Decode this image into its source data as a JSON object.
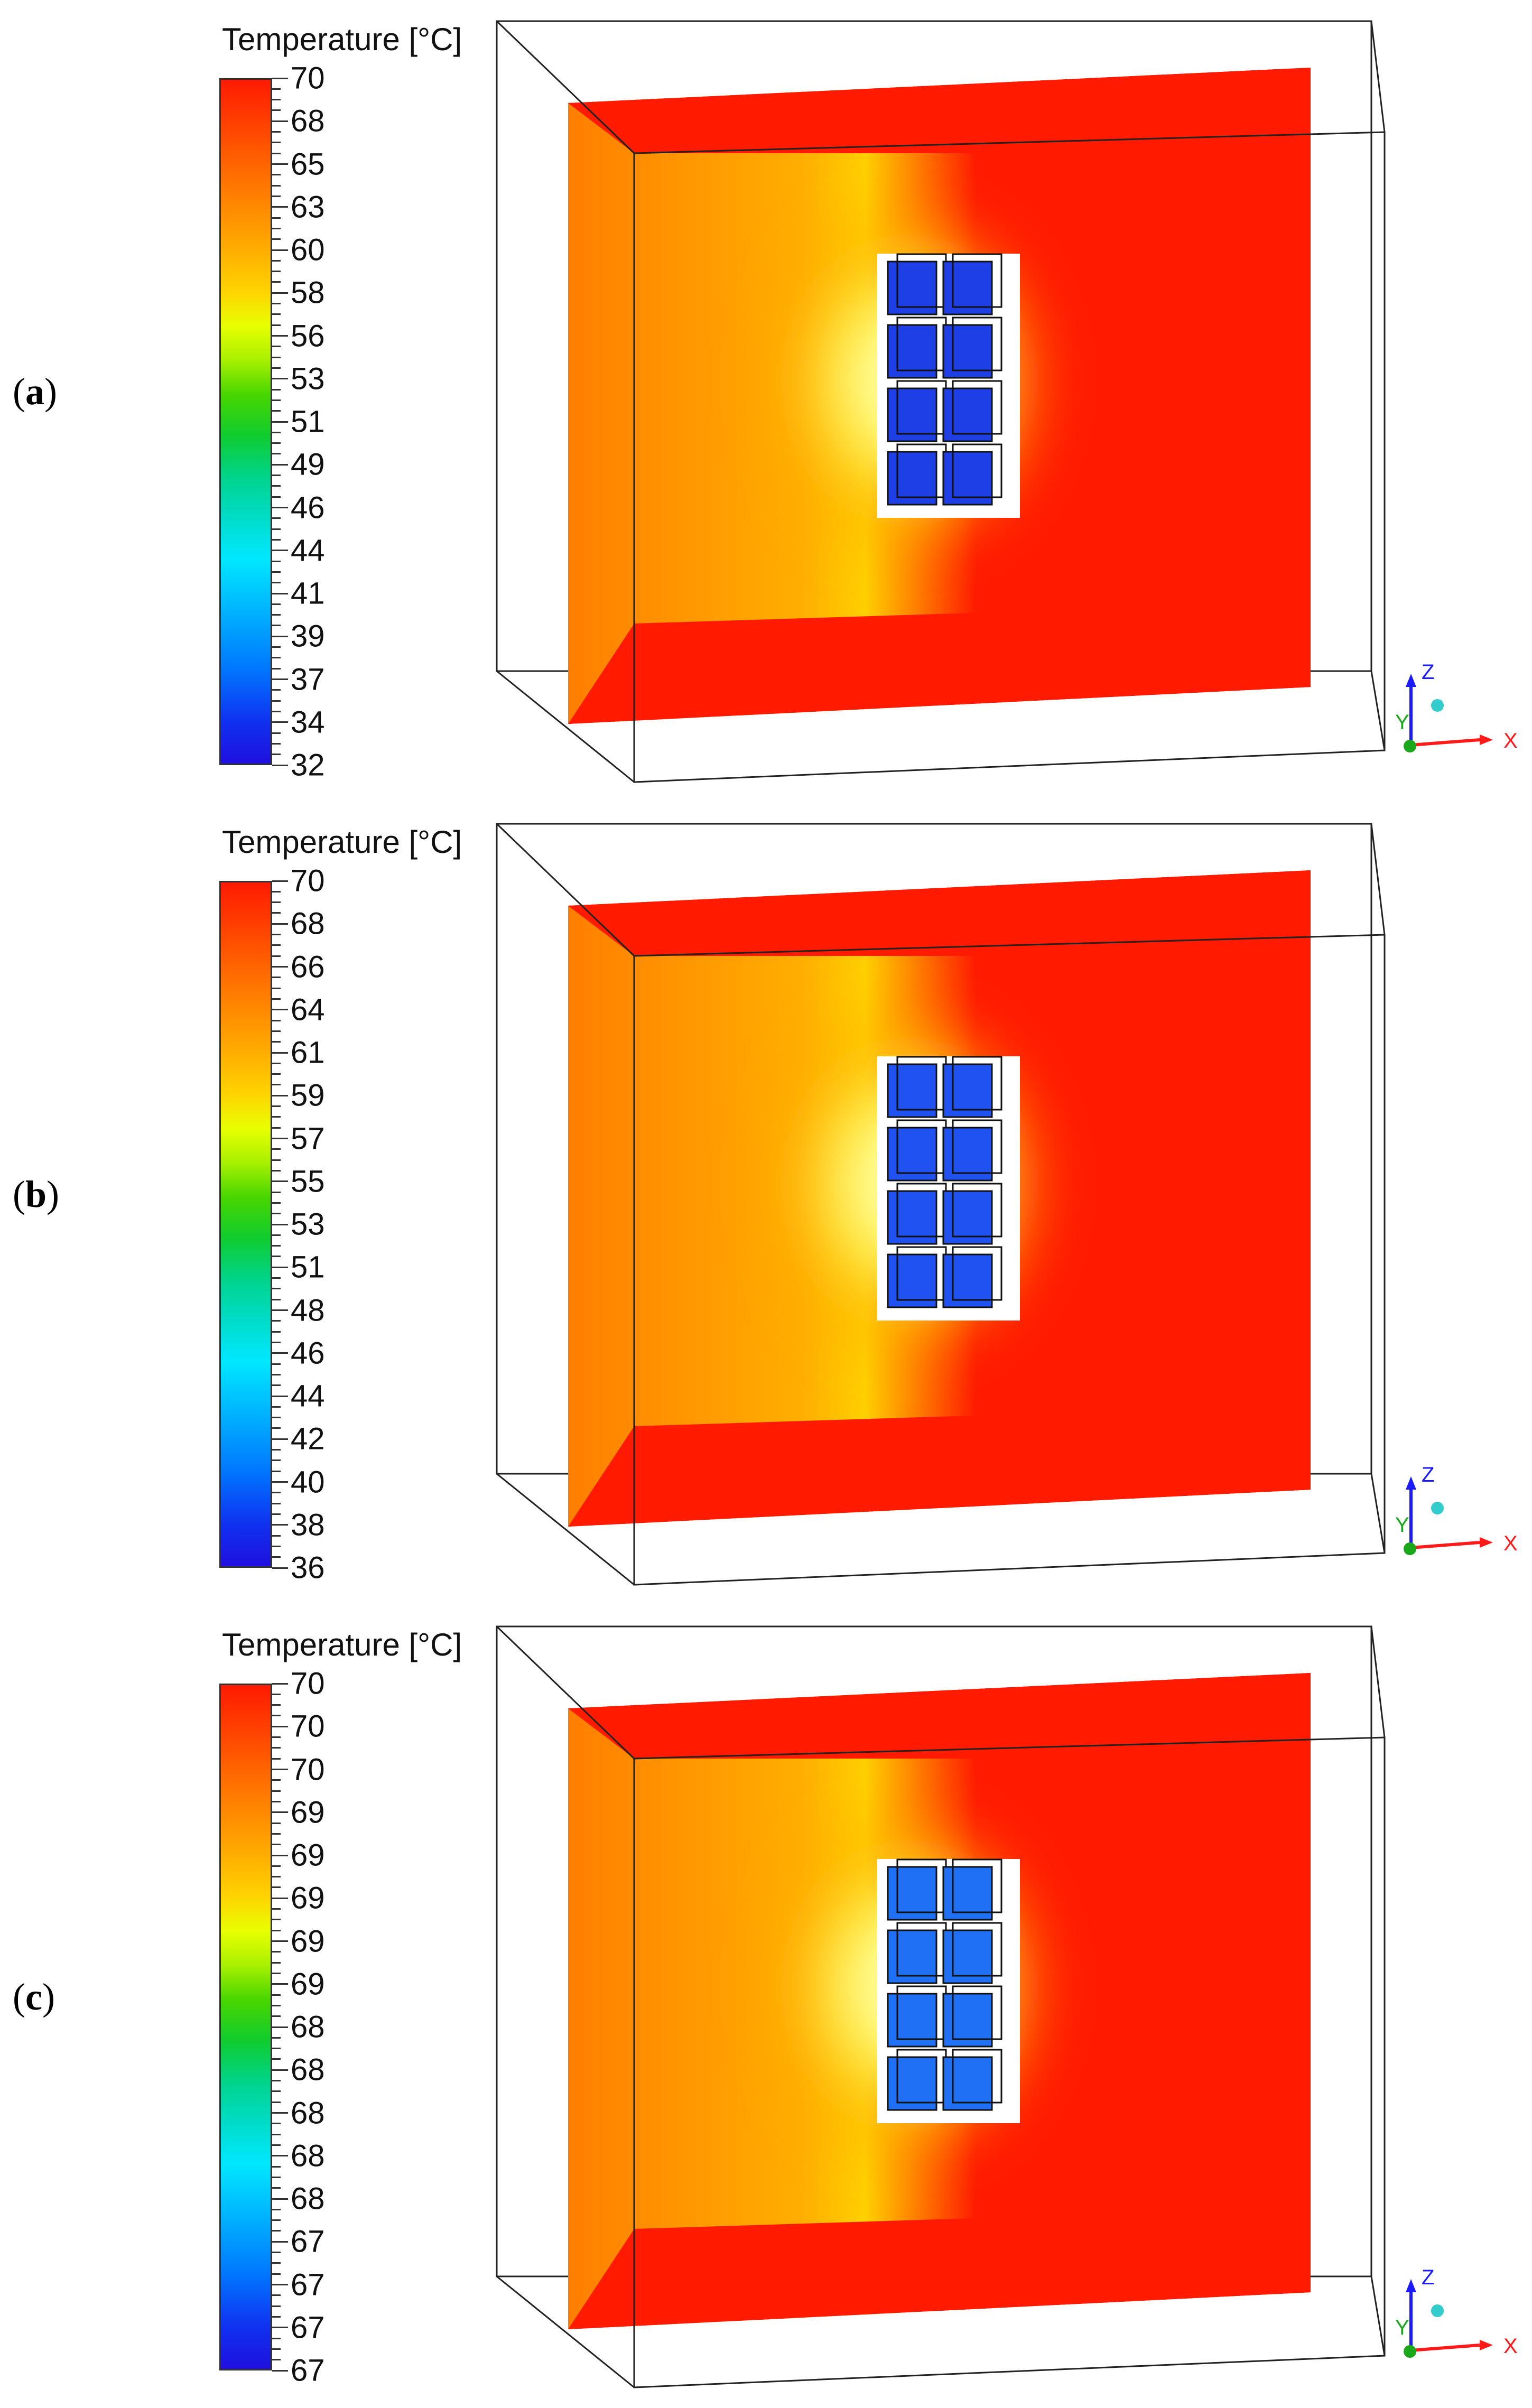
{
  "figure": {
    "panels": [
      {
        "label": "a",
        "legend_title": "Temperature [°C]",
        "ticks": [
          "70",
          "68",
          "65",
          "63",
          "60",
          "58",
          "56",
          "53",
          "51",
          "49",
          "46",
          "44",
          "41",
          "39",
          "37",
          "34",
          "32"
        ],
        "axes": {
          "z": "Z",
          "y": "Y",
          "x": "X"
        },
        "colors": {
          "field": "#ff1a00",
          "cold": "#1f3fe6",
          "warm": "#ff8a00"
        }
      },
      {
        "label": "b",
        "legend_title": "Temperature [°C]",
        "ticks": [
          "70",
          "68",
          "66",
          "64",
          "61",
          "59",
          "57",
          "55",
          "53",
          "51",
          "48",
          "46",
          "44",
          "42",
          "40",
          "38",
          "36"
        ],
        "axes": {
          "z": "Z",
          "y": "Y",
          "x": "X"
        },
        "colors": {
          "field": "#ff1a00",
          "cold": "#1f52f0",
          "warm": "#ff8a00"
        }
      },
      {
        "label": "c",
        "legend_title": "Temperature [°C]",
        "ticks": [
          "70",
          "70",
          "70",
          "69",
          "69",
          "69",
          "69",
          "69",
          "68",
          "68",
          "68",
          "68",
          "68",
          "67",
          "67",
          "67",
          "67"
        ],
        "axes": {
          "z": "Z",
          "y": "Y",
          "x": "X"
        },
        "colors": {
          "field": "#ff1a00",
          "cold": "#1f70f5",
          "warm": "#ff8a00"
        }
      }
    ]
  }
}
